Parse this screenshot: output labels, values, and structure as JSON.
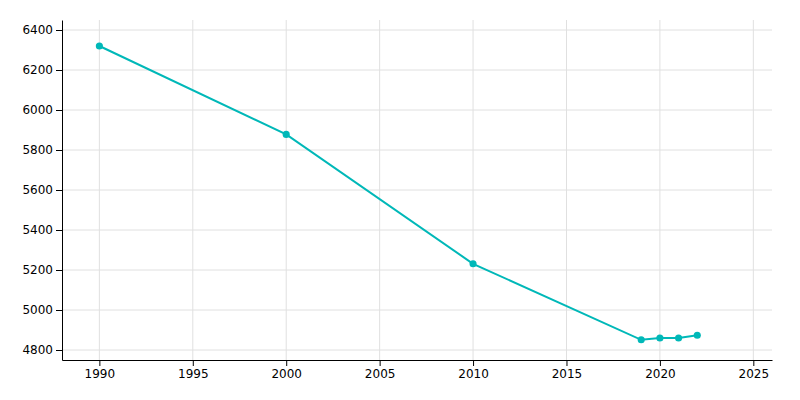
{
  "chart_data": {
    "type": "line",
    "x": [
      1990,
      2000,
      2010,
      2019,
      2020,
      2021,
      2022
    ],
    "values": [
      6320,
      5878,
      5231,
      4851,
      4860,
      4860,
      4874
    ],
    "color": "#00b8b8",
    "marker": "circle",
    "xlim": [
      1988,
      2026
    ],
    "ylim": [
      4750,
      6450
    ],
    "xticks": [
      1990,
      1995,
      2000,
      2005,
      2010,
      2015,
      2020,
      2025
    ],
    "yticks": [
      4800,
      5000,
      5200,
      5400,
      5600,
      5800,
      6000,
      6200,
      6400
    ],
    "grid": true
  }
}
